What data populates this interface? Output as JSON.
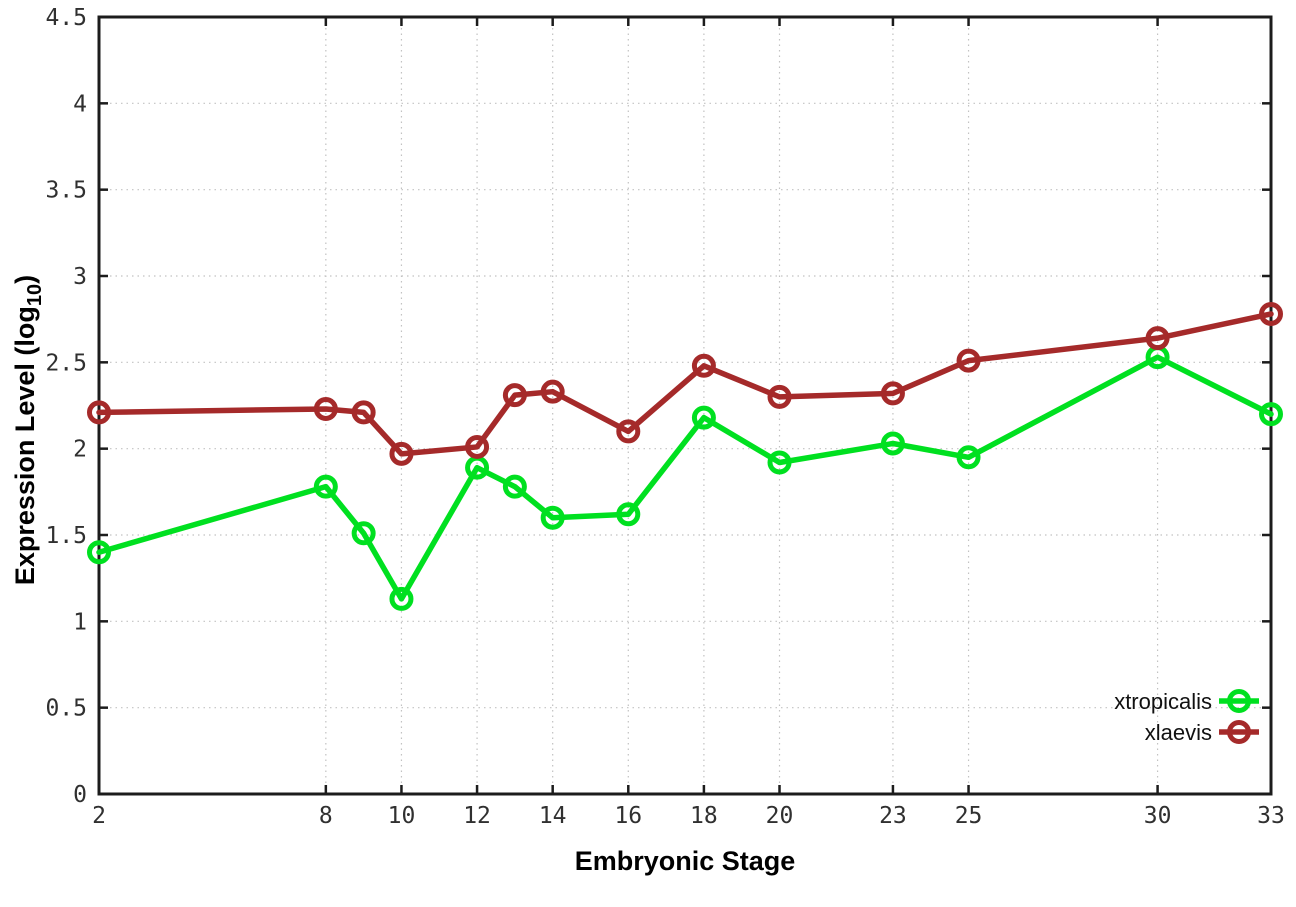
{
  "chart_data": {
    "type": "line",
    "title": "",
    "xlabel": "Embryonic Stage",
    "ylabel": "Expression Level (log10)",
    "ylabel_parts": {
      "main": "Expression Level (log",
      "sub": "10",
      "end": ")"
    },
    "x": [
      2,
      8,
      9,
      10,
      12,
      13,
      14,
      16,
      18,
      20,
      23,
      25,
      30,
      33
    ],
    "series": [
      {
        "name": "xtropicalis",
        "color": "#00e020",
        "values": [
          1.4,
          1.78,
          1.51,
          1.13,
          1.89,
          1.78,
          1.6,
          1.62,
          2.18,
          1.92,
          2.03,
          1.95,
          2.53,
          2.2
        ]
      },
      {
        "name": "xlaevis",
        "color": "#a52a2a",
        "values": [
          2.21,
          2.23,
          2.21,
          1.97,
          2.01,
          2.31,
          2.33,
          2.1,
          2.48,
          2.3,
          2.32,
          2.51,
          2.64,
          2.78
        ]
      }
    ],
    "xlim": [
      2,
      33
    ],
    "ylim": [
      0,
      4.5
    ],
    "x_tick_values": [
      2,
      8,
      10,
      12,
      14,
      16,
      18,
      20,
      23,
      25,
      30,
      33
    ],
    "x_tick_labels": [
      "2",
      "8",
      "10",
      "12",
      "14",
      "16",
      "18",
      "20",
      "23",
      "25",
      "30",
      "33"
    ],
    "y_tick_values": [
      0,
      0.5,
      1,
      1.5,
      2,
      2.5,
      3,
      3.5,
      4,
      4.5
    ],
    "y_tick_labels": [
      "0",
      "0.5",
      "1",
      "1.5",
      "2",
      "2.5",
      "3",
      "3.5",
      "4",
      "4.5"
    ],
    "grid": true,
    "grid_style": "dotted",
    "legend_position": "bottom-right",
    "legend_entries": [
      "xtropicalis",
      "xlaevis"
    ],
    "colors": {
      "background": "#ffffff",
      "border": "#1c1c1c",
      "grid": "#c2c2c2",
      "tick_label": "#303030",
      "axis_title": "#000000",
      "legend_text": "#111111"
    }
  }
}
